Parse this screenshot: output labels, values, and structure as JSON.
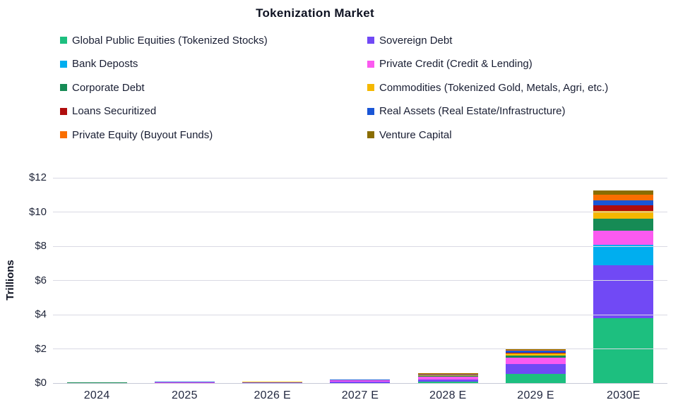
{
  "title": "Tokenization Market",
  "y_axis_label": "Trillions",
  "chart_data": {
    "type": "bar",
    "stacked": true,
    "title": "Tokenization Market",
    "ylabel": "Trillions",
    "xlabel": "",
    "ylim": [
      0,
      12
    ],
    "y_tick_step": 2,
    "y_tick_prefix": "$",
    "grid": true,
    "legend_position": "top",
    "legend_columns": 2,
    "categories": [
      "2024",
      "2025",
      "2026 E",
      "2027 E",
      "2028 E",
      "2029 E",
      "2030E"
    ],
    "series": [
      {
        "name": "Global Public Equities (Tokenized Stocks)",
        "color": "#1dbf7f",
        "values": [
          0.005,
          0.01,
          0.01,
          0.01,
          0.08,
          0.55,
          3.8
        ]
      },
      {
        "name": "Sovereign Debt",
        "color": "#7149f5",
        "values": [
          0.005,
          0.01,
          0.02,
          0.08,
          0.12,
          0.55,
          3.1
        ]
      },
      {
        "name": "Bank Deposts",
        "color": "#00aeef",
        "values": [
          0,
          0,
          0,
          0,
          0,
          0,
          1.2
        ]
      },
      {
        "name": "Private Credit (Credit & Lending)",
        "color": "#fb5af0",
        "values": [
          0.01,
          0.01,
          0.02,
          0.06,
          0.18,
          0.4,
          0.82
        ]
      },
      {
        "name": "Corporate Debt",
        "color": "#168b55",
        "values": [
          0.005,
          0.005,
          0.01,
          0.01,
          0.02,
          0.1,
          0.7
        ]
      },
      {
        "name": "Commodities (Tokenized Gold, Metals, Agri, etc.)",
        "color": "#f5b800",
        "values": [
          0.02,
          0.02,
          0.02,
          0.02,
          0.04,
          0.13,
          0.45
        ]
      },
      {
        "name": "Loans Securitized",
        "color": "#b00d0d",
        "values": [
          0.005,
          0.005,
          0.005,
          0.005,
          0.02,
          0.04,
          0.32
        ]
      },
      {
        "name": "Real Assets (Real Estate/Infrastructure)",
        "color": "#1a56d6",
        "values": [
          0.005,
          0.005,
          0.005,
          0.01,
          0.04,
          0.15,
          0.3
        ]
      },
      {
        "name": "Private Equity (Buyout Funds)",
        "color": "#fa6e00",
        "values": [
          0.003,
          0.005,
          0.005,
          0.01,
          0.04,
          0.04,
          0.32
        ]
      },
      {
        "name": "Venture Capital",
        "color": "#8a6d00",
        "values": [
          0.002,
          0.005,
          0.005,
          0.005,
          0.02,
          0.04,
          0.24
        ]
      }
    ]
  }
}
